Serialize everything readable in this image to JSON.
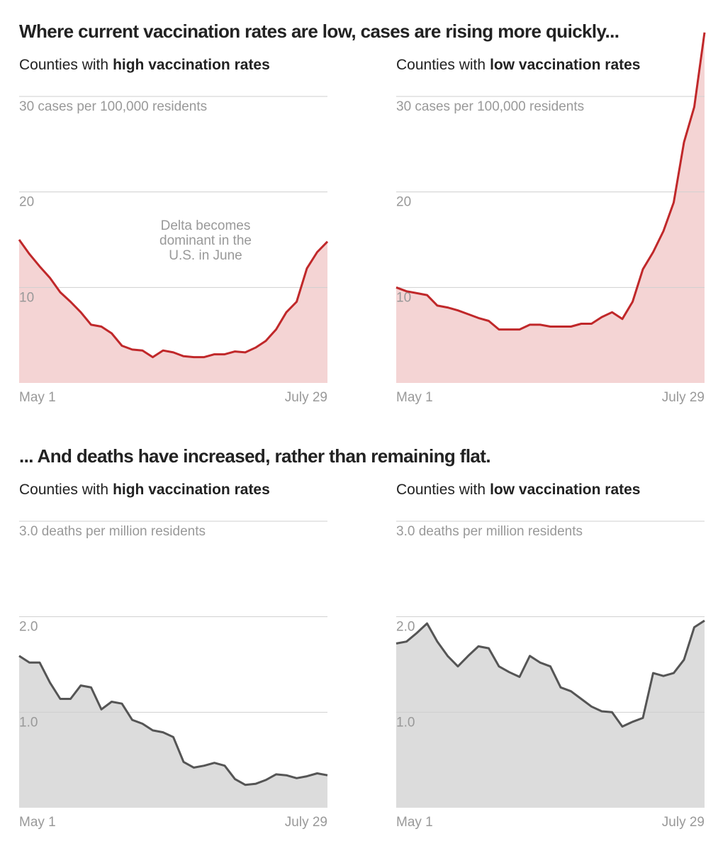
{
  "headings": [
    "Where current vaccination rates are low, cases are rising more quickly...",
    "... And deaths have increased, rather than remaining flat."
  ],
  "chart_data": [
    {
      "type": "area",
      "title": [
        "Counties with",
        "high vaccination rates"
      ],
      "categories": [
        "May 1",
        null,
        null,
        null,
        null,
        null,
        null,
        null,
        null,
        null,
        null,
        null,
        null,
        null,
        null,
        null,
        null,
        null,
        null,
        null,
        null,
        null,
        null,
        null,
        null,
        null,
        null,
        null,
        null,
        null,
        "July 29"
      ],
      "values": [
        15.0,
        13.5,
        12.2,
        11.0,
        9.5,
        8.5,
        7.4,
        6.1,
        5.9,
        5.2,
        3.9,
        3.5,
        3.4,
        2.7,
        3.4,
        3.2,
        2.8,
        2.7,
        2.7,
        3.0,
        3.0,
        3.3,
        3.2,
        3.7,
        4.4,
        5.6,
        7.4,
        8.5,
        12.0,
        13.7,
        14.8
      ],
      "color": "#c0282a",
      "fill": "#f4d4d4",
      "ylim": [
        0,
        30
      ],
      "yticks": [
        10,
        20,
        {
          "value": 30,
          "label": "30 cases per 100,000 residents"
        }
      ],
      "grid": true,
      "annotation": [
        "Delta becomes",
        "dominant in the",
        "U.S. in June"
      ]
    },
    {
      "type": "area",
      "title": [
        "Counties with",
        "low vaccination rates"
      ],
      "categories": [
        "May 1",
        null,
        null,
        null,
        null,
        null,
        null,
        null,
        null,
        null,
        null,
        null,
        null,
        null,
        null,
        null,
        null,
        null,
        null,
        null,
        null,
        null,
        null,
        null,
        null,
        null,
        null,
        null,
        null,
        null,
        "July 29"
      ],
      "values": [
        10.0,
        9.6,
        9.4,
        9.2,
        8.1,
        7.9,
        7.6,
        7.2,
        6.8,
        6.5,
        5.6,
        5.6,
        5.6,
        6.1,
        6.1,
        5.9,
        5.9,
        5.9,
        6.2,
        6.2,
        6.9,
        7.4,
        6.7,
        8.5,
        11.9,
        13.7,
        15.9,
        18.9,
        25.2,
        28.9,
        36.7
      ],
      "color": "#c0282a",
      "fill": "#f4d4d4",
      "ylim": [
        0,
        30
      ],
      "yticks": [
        10,
        20,
        {
          "value": 30,
          "label": "30 cases per 100,000 residents"
        }
      ],
      "grid": true
    },
    {
      "type": "area",
      "title": [
        "Counties with",
        "high vaccination rates"
      ],
      "categories": [
        "May 1",
        null,
        null,
        null,
        null,
        null,
        null,
        null,
        null,
        null,
        null,
        null,
        null,
        null,
        null,
        null,
        null,
        null,
        null,
        null,
        null,
        null,
        null,
        null,
        null,
        null,
        null,
        null,
        null,
        null,
        "July 29"
      ],
      "values": [
        1.59,
        1.52,
        1.52,
        1.31,
        1.14,
        1.14,
        1.28,
        1.26,
        1.03,
        1.11,
        1.09,
        0.92,
        0.88,
        0.81,
        0.79,
        0.74,
        0.48,
        0.42,
        0.44,
        0.47,
        0.44,
        0.3,
        0.24,
        0.25,
        0.29,
        0.35,
        0.34,
        0.31,
        0.33,
        0.36,
        0.34
      ],
      "color": "#555555",
      "fill": "#dcdcdc",
      "ylim": [
        0,
        3
      ],
      "yticks": [
        {
          "value": 1,
          "label": "1.0"
        },
        {
          "value": 2,
          "label": "2.0"
        },
        {
          "value": 3,
          "label": "3.0 deaths per million residents"
        }
      ],
      "grid": true
    },
    {
      "type": "area",
      "title": [
        "Counties with",
        "low vaccination rates"
      ],
      "categories": [
        "May 1",
        null,
        null,
        null,
        null,
        null,
        null,
        null,
        null,
        null,
        null,
        null,
        null,
        null,
        null,
        null,
        null,
        null,
        null,
        null,
        null,
        null,
        null,
        null,
        null,
        null,
        null,
        null,
        null,
        null,
        "July 29"
      ],
      "values": [
        1.72,
        1.74,
        1.83,
        1.93,
        1.74,
        1.59,
        1.48,
        1.59,
        1.69,
        1.67,
        1.48,
        1.42,
        1.37,
        1.59,
        1.52,
        1.48,
        1.26,
        1.22,
        1.14,
        1.06,
        1.01,
        1.0,
        0.85,
        0.9,
        0.94,
        1.41,
        1.38,
        1.41,
        1.55,
        1.89,
        1.96
      ],
      "color": "#555555",
      "fill": "#dcdcdc",
      "ylim": [
        0,
        3
      ],
      "yticks": [
        {
          "value": 1,
          "label": "1.0"
        },
        {
          "value": 2,
          "label": "2.0"
        },
        {
          "value": 3,
          "label": "3.0 deaths per million residents"
        }
      ],
      "grid": true
    }
  ]
}
